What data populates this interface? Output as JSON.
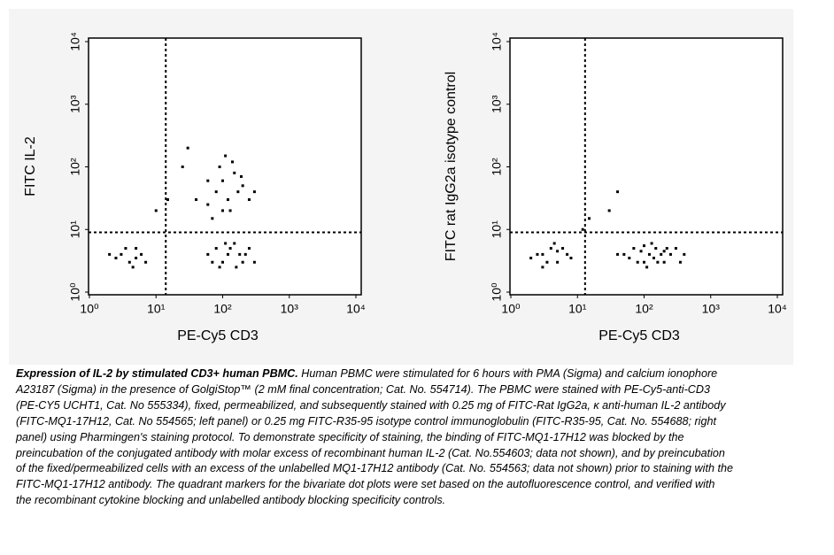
{
  "chart_data": [
    {
      "type": "scatter",
      "xlabel": "PE-Cy5 CD3",
      "ylabel": "FITC IL-2",
      "xscale": "log",
      "yscale": "log",
      "color": "#000000",
      "xlim": [
        1,
        10000
      ],
      "ylim": [
        1,
        10000
      ],
      "xticks": [
        {
          "value": 1,
          "label": "10⁰"
        },
        {
          "value": 10,
          "label": "10¹"
        },
        {
          "value": 100,
          "label": "10²"
        },
        {
          "value": 1000,
          "label": "10³"
        },
        {
          "value": 10000,
          "label": "10⁴"
        }
      ],
      "yticks": [
        {
          "value": 1,
          "label": "10⁰"
        },
        {
          "value": 10,
          "label": "10¹"
        },
        {
          "value": 100,
          "label": "10²"
        },
        {
          "value": 1000,
          "label": "10³"
        },
        {
          "value": 10000,
          "label": "10⁴"
        }
      ],
      "quadrant_x": 14,
      "quadrant_y": 9,
      "x": [
        3,
        4,
        5,
        2.5,
        6,
        3.5,
        4.5,
        7,
        2,
        5,
        60,
        80,
        100,
        120,
        150,
        200,
        250,
        90,
        70,
        130,
        180,
        300,
        110,
        160,
        220,
        80,
        100,
        120,
        150,
        200,
        60,
        90,
        130,
        170,
        250,
        110,
        70,
        140,
        190,
        100,
        60,
        300,
        40,
        25,
        15,
        30,
        10
      ],
      "y": [
        4,
        3,
        5,
        3.5,
        4,
        5,
        2.5,
        3,
        4,
        3.5,
        4,
        5,
        3,
        4,
        6,
        3,
        5,
        2.5,
        3,
        5,
        4,
        3,
        6,
        2.5,
        4,
        40,
        60,
        30,
        80,
        50,
        25,
        100,
        20,
        40,
        30,
        150,
        15,
        120,
        70,
        20,
        60,
        40,
        30,
        100,
        30,
        200,
        20
      ]
    },
    {
      "type": "scatter",
      "xlabel": "PE-Cy5 CD3",
      "ylabel": "FITC rat IgG2a isotype control",
      "xscale": "log",
      "yscale": "log",
      "color": "#000000",
      "xlim": [
        1,
        10000
      ],
      "ylim": [
        1,
        10000
      ],
      "xticks": [
        {
          "value": 1,
          "label": "10⁰"
        },
        {
          "value": 10,
          "label": "10¹"
        },
        {
          "value": 100,
          "label": "10²"
        },
        {
          "value": 1000,
          "label": "10³"
        },
        {
          "value": 10000,
          "label": "10⁴"
        }
      ],
      "yticks": [
        {
          "value": 1,
          "label": "10⁰"
        },
        {
          "value": 10,
          "label": "10¹"
        },
        {
          "value": 100,
          "label": "10²"
        },
        {
          "value": 1000,
          "label": "10³"
        },
        {
          "value": 10000,
          "label": "10⁴"
        }
      ],
      "quadrant_x": 13,
      "quadrant_y": 9,
      "x": [
        3,
        4,
        5,
        2.5,
        6,
        3.5,
        7,
        2,
        4.5,
        8,
        5,
        3,
        50,
        70,
        100,
        120,
        150,
        200,
        250,
        300,
        80,
        60,
        130,
        180,
        90,
        110,
        160,
        220,
        400,
        40,
        350,
        140,
        100,
        200,
        15,
        30,
        40,
        12
      ],
      "y": [
        4,
        5,
        3,
        4,
        5,
        3,
        4,
        3.5,
        6,
        3.5,
        4.5,
        2.5,
        4,
        5,
        3,
        4,
        5,
        3,
        4,
        5,
        3,
        3.5,
        6,
        4,
        4.5,
        2.5,
        3,
        5,
        4,
        4,
        3,
        3.5,
        5.5,
        4.5,
        15,
        20,
        40,
        10
      ]
    }
  ],
  "caption": {
    "title": "Expression of IL-2 by stimulated CD3+ human PBMC.",
    "text": "Human PBMC were stimulated for 6 hours with PMA (Sigma) and calcium ionophore A23187 (Sigma) in the presence of GolgiStop™ (2 mM final concentration; Cat. No. 554714). The PBMC were stained with PE-Cy5-anti-CD3 (PE-CY5 UCHT1, Cat. No 555334), fixed, permeabilized, and subsequently stained with 0.25 mg of FITC-Rat IgG2a, κ anti-human IL-2 antibody (FITC-MQ1-17H12, Cat. No 554565; left panel) or 0.25 mg FITC-R35-95 isotype control immunoglobulin (FITC-R35-95, Cat. No. 554688; right panel) using Pharmingen's staining protocol. To demonstrate specificity of staining, the binding of FITC-MQ1-17H12 was blocked by the preincubation of the conjugated antibody with molar excess of recombinant human IL-2 (Cat. No.554603; data not shown), and by preincubation of the fixed/permeabilized cells with an excess of the unlabelled MQ1-17H12 antibody (Cat. No. 554563; data not shown) prior to staining with the FITC-MQ1-17H12 antibody. The quadrant markers for the bivariate dot plots were set based on the autofluorescence control, and verified with the recombinant cytokine blocking and unlabelled antibody blocking specificity controls."
  }
}
